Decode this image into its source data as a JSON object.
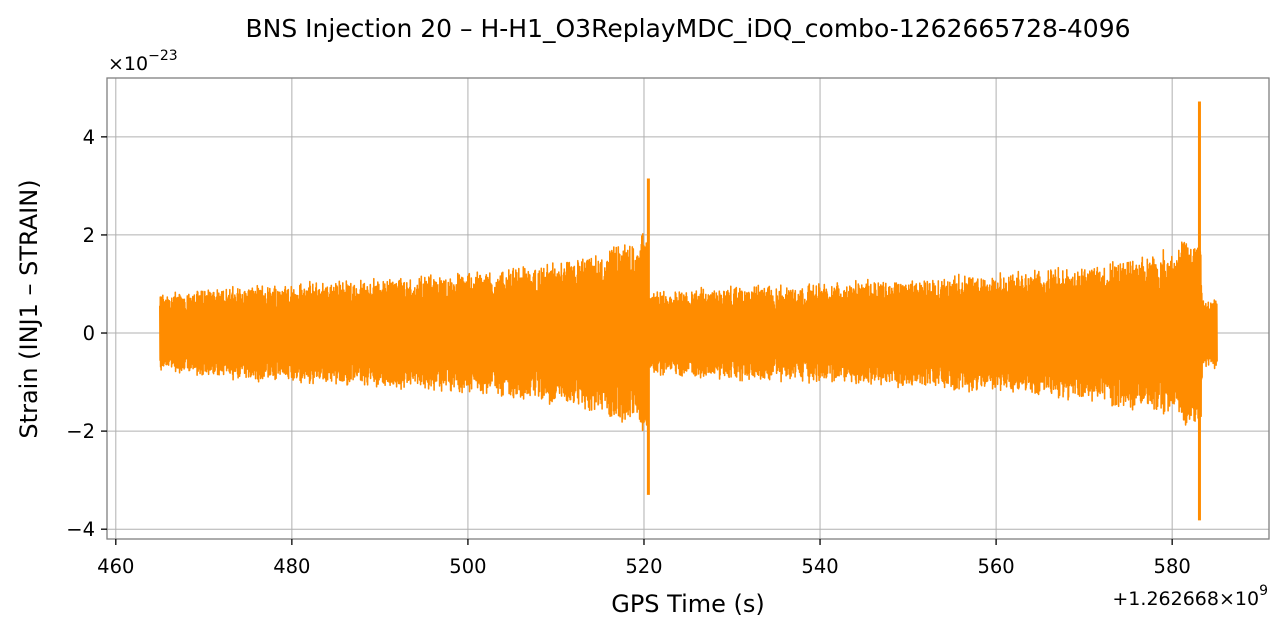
{
  "chart_data": {
    "type": "line",
    "title": "BNS Injection 20 – H-H1_O3ReplayMDC_iDQ_combo-1262665728-4096",
    "xlabel": "GPS Time (s)",
    "ylabel": "Strain (INJ1 – STRAIN)",
    "x_offset_text": "+1.262668×10",
    "x_offset_exponent": "9",
    "y_scale_text": "×10",
    "y_scale_exponent": "−23",
    "xlim": [
      459,
      591
    ],
    "ylim": [
      -4.2,
      5.2
    ],
    "x_ticks": [
      460,
      480,
      500,
      520,
      540,
      560,
      580
    ],
    "x_tick_labels": [
      "460",
      "480",
      "500",
      "520",
      "540",
      "560",
      "580"
    ],
    "y_ticks": [
      -4,
      -2,
      0,
      2,
      4
    ],
    "y_tick_labels": [
      "−4",
      "−2",
      "0",
      "2",
      "4"
    ],
    "grid": true,
    "color": "#ff8c00",
    "series": [
      {
        "x_start": 465.0,
        "x_end": 585.1,
        "envelope": [
          {
            "x": 465.0,
            "amp": 0.75
          },
          {
            "x": 470.0,
            "amp": 0.85
          },
          {
            "x": 480.0,
            "amp": 0.95
          },
          {
            "x": 490.0,
            "amp": 1.05
          },
          {
            "x": 500.0,
            "amp": 1.15
          },
          {
            "x": 510.0,
            "amp": 1.35
          },
          {
            "x": 515.0,
            "amp": 1.5
          },
          {
            "x": 519.5,
            "amp": 1.9
          },
          {
            "x": 520.4,
            "amp": 2.0
          },
          {
            "x": 520.6,
            "amp": 0.8
          },
          {
            "x": 530.0,
            "amp": 0.9
          },
          {
            "x": 540.0,
            "amp": 0.95
          },
          {
            "x": 550.0,
            "amp": 1.05
          },
          {
            "x": 560.0,
            "amp": 1.15
          },
          {
            "x": 570.0,
            "amp": 1.3
          },
          {
            "x": 578.0,
            "amp": 1.5
          },
          {
            "x": 582.8,
            "amp": 1.9
          },
          {
            "x": 583.2,
            "amp": 1.9
          },
          {
            "x": 583.4,
            "amp": 0.7
          },
          {
            "x": 585.1,
            "amp": 0.7
          }
        ],
        "spikes": [
          {
            "x": 520.5,
            "max": 3.15,
            "min": -3.3
          },
          {
            "x": 583.1,
            "max": 4.72,
            "min": -3.82
          }
        ]
      }
    ]
  }
}
